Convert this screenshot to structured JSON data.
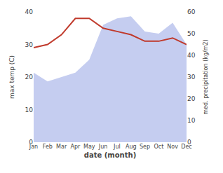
{
  "chart_data": {
    "type": "line",
    "categories": [
      "Jan",
      "Feb",
      "Mar",
      "Apr",
      "May",
      "Jun",
      "Jul",
      "Aug",
      "Sep",
      "Oct",
      "Nov",
      "Dec"
    ],
    "xlabel": "date (month)",
    "ylabel": "max temp (C)",
    "y2label": "med. precipitation (kg/m2)",
    "series": [
      {
        "type": "area",
        "axis": "y2",
        "color": "#c5cdf0",
        "values": [
          32,
          28,
          30,
          32,
          38,
          54,
          57,
          58,
          51,
          50,
          55,
          45
        ]
      },
      {
        "type": "line",
        "color": "#c0392b",
        "values": [
          29,
          30,
          33,
          38,
          38,
          35,
          34,
          33,
          31,
          31,
          32,
          30
        ]
      }
    ],
    "ylim": [
      0,
      40
    ],
    "yticks": [
      0,
      10,
      20,
      30,
      40
    ],
    "y2lim": [
      0,
      60
    ],
    "y2ticks": [
      0,
      10,
      20,
      30,
      40,
      50,
      60
    ],
    "grid": false
  }
}
